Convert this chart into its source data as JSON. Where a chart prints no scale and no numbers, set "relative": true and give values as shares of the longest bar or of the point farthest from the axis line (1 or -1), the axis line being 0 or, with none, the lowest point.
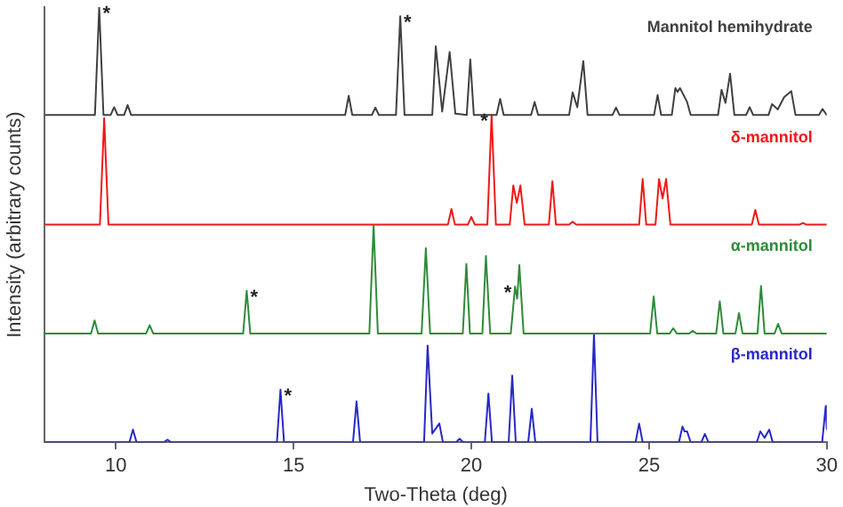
{
  "chart_data": {
    "type": "line",
    "relative": true,
    "xlabel": "Two-Theta (deg)",
    "ylabel": "Intensity (arbitrary counts)",
    "xlim": [
      8,
      30
    ],
    "xticks": [
      10,
      15,
      20,
      25,
      30
    ],
    "grid": false,
    "legend": false,
    "marker": "none",
    "line_style": "solid",
    "series": [
      {
        "name": "Mannitol hemihydrate",
        "color": "#404040",
        "x": [
          8,
          9.41,
          9.53,
          9.65,
          9.85,
          9.95,
          10.05,
          10.23,
          10.33,
          10.43,
          16.45,
          16.55,
          16.65,
          17.2,
          17.3,
          17.4,
          17.88,
          18.0,
          18.12,
          18.9,
          19.0,
          19.18,
          19.39,
          19.55,
          19.87,
          19.97,
          20.07,
          20.71,
          20.81,
          20.91,
          21.68,
          21.78,
          21.88,
          22.75,
          22.85,
          22.98,
          23.15,
          23.27,
          23.97,
          24.07,
          24.17,
          25.14,
          25.24,
          25.34,
          25.64,
          25.74,
          25.8,
          25.87,
          26.07,
          26.17,
          26.94,
          27.04,
          27.15,
          27.28,
          27.4,
          27.73,
          27.83,
          27.93,
          28.36,
          28.46,
          28.62,
          28.8,
          29.0,
          29.12,
          29.78,
          29.88,
          30
        ],
        "values": [
          0.752,
          0.752,
          1.0,
          0.752,
          0.752,
          0.77,
          0.752,
          0.752,
          0.775,
          0.752,
          0.752,
          0.796,
          0.752,
          0.752,
          0.769,
          0.752,
          0.752,
          0.979,
          0.752,
          0.752,
          0.91,
          0.76,
          0.897,
          0.755,
          0.752,
          0.88,
          0.752,
          0.752,
          0.789,
          0.752,
          0.752,
          0.782,
          0.752,
          0.752,
          0.804,
          0.77,
          0.876,
          0.752,
          0.752,
          0.769,
          0.752,
          0.752,
          0.798,
          0.752,
          0.752,
          0.814,
          0.805,
          0.814,
          0.782,
          0.752,
          0.752,
          0.81,
          0.78,
          0.847,
          0.752,
          0.752,
          0.77,
          0.752,
          0.752,
          0.777,
          0.765,
          0.793,
          0.807,
          0.752,
          0.752,
          0.766,
          0.752
        ]
      },
      {
        "name": "δ-mannitol",
        "color": "#f01818",
        "x": [
          8,
          9.55,
          9.67,
          9.79,
          19.34,
          19.44,
          19.54,
          19.9,
          20.0,
          20.1,
          20.45,
          20.57,
          20.69,
          21.08,
          21.18,
          21.28,
          21.38,
          21.5,
          22.18,
          22.28,
          22.38,
          22.75,
          22.85,
          22.95,
          24.72,
          24.82,
          24.92,
          25.18,
          25.28,
          25.38,
          25.48,
          25.6,
          27.89,
          27.99,
          28.09,
          29.23,
          29.33,
          29.43,
          30
        ],
        "values": [
          0.5,
          0.5,
          0.745,
          0.5,
          0.5,
          0.536,
          0.5,
          0.5,
          0.518,
          0.5,
          0.5,
          0.752,
          0.5,
          0.5,
          0.59,
          0.55,
          0.59,
          0.5,
          0.5,
          0.6,
          0.5,
          0.5,
          0.507,
          0.5,
          0.5,
          0.605,
          0.5,
          0.5,
          0.605,
          0.56,
          0.605,
          0.5,
          0.5,
          0.534,
          0.5,
          0.5,
          0.504,
          0.5,
          0.5
        ]
      },
      {
        "name": "α-mannitol",
        "color": "#2e8b3a",
        "x": [
          8,
          9.3,
          9.4,
          9.5,
          10.85,
          10.95,
          11.05,
          13.58,
          13.68,
          13.78,
          17.13,
          17.25,
          17.37,
          18.6,
          18.72,
          18.84,
          19.76,
          19.86,
          19.96,
          20.31,
          20.41,
          20.53,
          21.11,
          21.23,
          21.29,
          21.35,
          21.47,
          25.03,
          25.13,
          25.23,
          25.58,
          25.68,
          25.78,
          26.13,
          26.23,
          26.33,
          26.89,
          26.99,
          27.09,
          27.43,
          27.53,
          27.63,
          28.05,
          28.15,
          28.25,
          28.53,
          28.63,
          28.73,
          30
        ],
        "values": [
          0.25,
          0.25,
          0.28,
          0.25,
          0.25,
          0.269,
          0.25,
          0.25,
          0.348,
          0.25,
          0.25,
          0.498,
          0.25,
          0.25,
          0.446,
          0.25,
          0.25,
          0.41,
          0.25,
          0.25,
          0.428,
          0.25,
          0.25,
          0.358,
          0.33,
          0.407,
          0.25,
          0.25,
          0.335,
          0.25,
          0.25,
          0.262,
          0.25,
          0.25,
          0.256,
          0.25,
          0.25,
          0.324,
          0.25,
          0.25,
          0.297,
          0.25,
          0.25,
          0.359,
          0.25,
          0.25,
          0.272,
          0.25,
          0.25
        ]
      },
      {
        "name": "β-mannitol",
        "color": "#2828c8",
        "x": [
          8,
          10.38,
          10.48,
          10.58,
          11.35,
          11.45,
          11.55,
          14.53,
          14.63,
          14.73,
          16.67,
          16.77,
          16.87,
          18.67,
          18.77,
          18.9,
          19.1,
          19.2,
          19.57,
          19.67,
          19.77,
          20.38,
          20.48,
          20.58,
          21.05,
          21.15,
          21.25,
          21.6,
          21.7,
          21.8,
          23.35,
          23.45,
          23.55,
          24.62,
          24.72,
          24.82,
          25.84,
          25.94,
          26.0,
          26.07,
          26.17,
          26.47,
          26.57,
          26.67,
          28.03,
          28.13,
          28.25,
          28.38,
          28.48,
          29.87,
          29.97,
          30
        ],
        "values": [
          0,
          0,
          0.029,
          0,
          0,
          0.006,
          0,
          0,
          0.121,
          0,
          0,
          0.094,
          0,
          0,
          0.222,
          0.02,
          0.043,
          0,
          0,
          0.008,
          0,
          0,
          0.112,
          0,
          0,
          0.153,
          0,
          0,
          0.077,
          0,
          0,
          0.249,
          0,
          0,
          0.043,
          0,
          0,
          0.036,
          0.025,
          0.025,
          0,
          0,
          0.019,
          0,
          0,
          0.025,
          0.01,
          0.029,
          0,
          0,
          0.083,
          0.03
        ]
      }
    ],
    "annotations": [
      {
        "text": "*",
        "x": 9.53,
        "y": 1.0
      },
      {
        "text": "*",
        "x": 18.0,
        "y": 0.979
      },
      {
        "text": "*",
        "x": 20.57,
        "y": 0.752
      },
      {
        "text": "*",
        "x": 13.68,
        "y": 0.348
      },
      {
        "text": "*",
        "x": 21.23,
        "y": 0.358
      },
      {
        "text": "*",
        "x": 14.63,
        "y": 0.121
      }
    ]
  }
}
